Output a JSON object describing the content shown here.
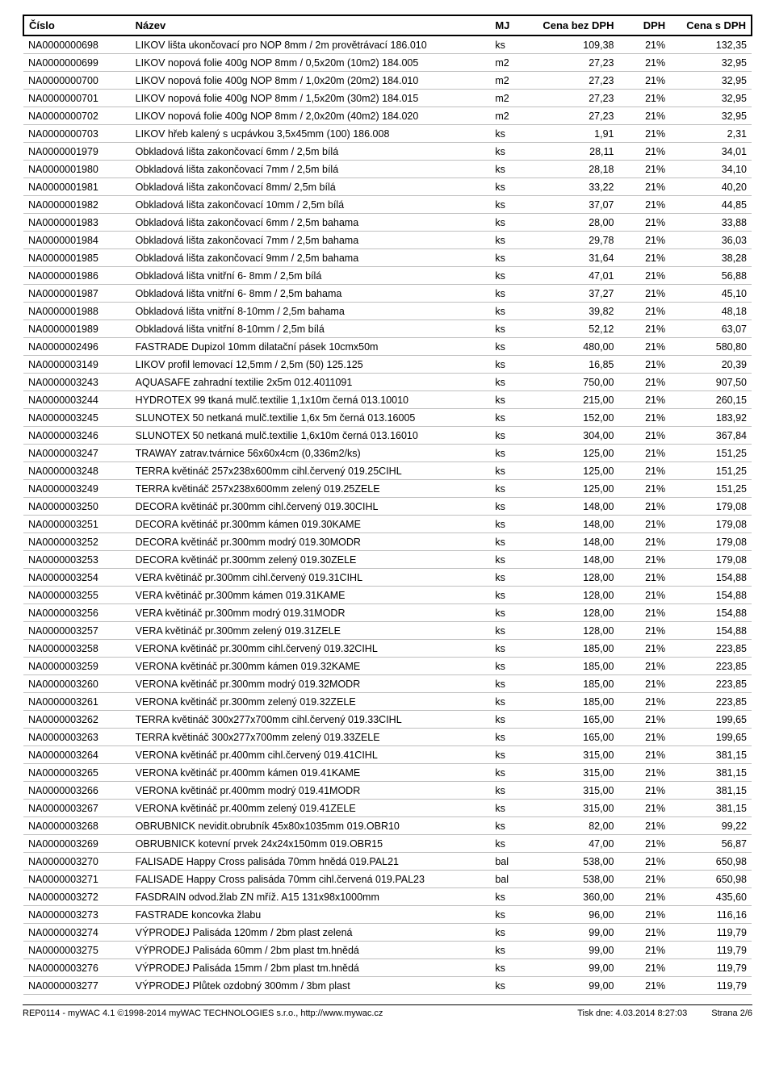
{
  "headers": {
    "cislo": "Číslo",
    "nazev": "Název",
    "mj": "MJ",
    "bez": "Cena bez DPH",
    "dph": "DPH",
    "sdph": "Cena s DPH"
  },
  "rows": [
    {
      "cislo": "NA0000000698",
      "nazev": "LIKOV lišta ukončovací pro NOP 8mm / 2m provětrávací 186.010",
      "mj": "ks",
      "bez": "109,38",
      "dph": "21%",
      "sdph": "132,35"
    },
    {
      "cislo": "NA0000000699",
      "nazev": "LIKOV nopová folie 400g NOP 8mm / 0,5x20m (10m2) 184.005",
      "mj": "m2",
      "bez": "27,23",
      "dph": "21%",
      "sdph": "32,95"
    },
    {
      "cislo": "NA0000000700",
      "nazev": "LIKOV nopová folie 400g NOP 8mm / 1,0x20m (20m2) 184.010",
      "mj": "m2",
      "bez": "27,23",
      "dph": "21%",
      "sdph": "32,95"
    },
    {
      "cislo": "NA0000000701",
      "nazev": "LIKOV nopová folie 400g NOP 8mm / 1,5x20m (30m2) 184.015",
      "mj": "m2",
      "bez": "27,23",
      "dph": "21%",
      "sdph": "32,95"
    },
    {
      "cislo": "NA0000000702",
      "nazev": "LIKOV nopová folie 400g NOP 8mm / 2,0x20m (40m2) 184.020",
      "mj": "m2",
      "bez": "27,23",
      "dph": "21%",
      "sdph": "32,95"
    },
    {
      "cislo": "NA0000000703",
      "nazev": "LIKOV hřeb kalený s ucpávkou 3,5x45mm (100) 186.008",
      "mj": "ks",
      "bez": "1,91",
      "dph": "21%",
      "sdph": "2,31"
    },
    {
      "cislo": "NA0000001979",
      "nazev": "Obkladová lišta zakončovací 6mm / 2,5m bílá",
      "mj": "ks",
      "bez": "28,11",
      "dph": "21%",
      "sdph": "34,01"
    },
    {
      "cislo": "NA0000001980",
      "nazev": "Obkladová lišta zakončovací 7mm / 2,5m bílá",
      "mj": "ks",
      "bez": "28,18",
      "dph": "21%",
      "sdph": "34,10"
    },
    {
      "cislo": "NA0000001981",
      "nazev": "Obkladová lišta zakončovací 8mm/ 2,5m bílá",
      "mj": "ks",
      "bez": "33,22",
      "dph": "21%",
      "sdph": "40,20"
    },
    {
      "cislo": "NA0000001982",
      "nazev": "Obkladová lišta zakončovací 10mm / 2,5m bílá",
      "mj": "ks",
      "bez": "37,07",
      "dph": "21%",
      "sdph": "44,85"
    },
    {
      "cislo": "NA0000001983",
      "nazev": "Obkladová lišta zakončovací 6mm / 2,5m bahama",
      "mj": "ks",
      "bez": "28,00",
      "dph": "21%",
      "sdph": "33,88"
    },
    {
      "cislo": "NA0000001984",
      "nazev": "Obkladová lišta zakončovací 7mm / 2,5m bahama",
      "mj": "ks",
      "bez": "29,78",
      "dph": "21%",
      "sdph": "36,03"
    },
    {
      "cislo": "NA0000001985",
      "nazev": "Obkladová lišta zakončovací 9mm / 2,5m bahama",
      "mj": "ks",
      "bez": "31,64",
      "dph": "21%",
      "sdph": "38,28"
    },
    {
      "cislo": "NA0000001986",
      "nazev": "Obkladová lišta vnitřní 6- 8mm / 2,5m bílá",
      "mj": "ks",
      "bez": "47,01",
      "dph": "21%",
      "sdph": "56,88"
    },
    {
      "cislo": "NA0000001987",
      "nazev": "Obkladová lišta vnitřní 6- 8mm / 2,5m bahama",
      "mj": "ks",
      "bez": "37,27",
      "dph": "21%",
      "sdph": "45,10"
    },
    {
      "cislo": "NA0000001988",
      "nazev": "Obkladová lišta vnitřní 8-10mm / 2,5m bahama",
      "mj": "ks",
      "bez": "39,82",
      "dph": "21%",
      "sdph": "48,18"
    },
    {
      "cislo": "NA0000001989",
      "nazev": "Obkladová lišta vnitřní 8-10mm / 2,5m bílá",
      "mj": "ks",
      "bez": "52,12",
      "dph": "21%",
      "sdph": "63,07"
    },
    {
      "cislo": "NA0000002496",
      "nazev": "FASTRADE Dupizol 10mm dilatační pásek 10cmx50m",
      "mj": "ks",
      "bez": "480,00",
      "dph": "21%",
      "sdph": "580,80"
    },
    {
      "cislo": "NA0000003149",
      "nazev": "LIKOV profil lemovací 12,5mm / 2,5m (50) 125.125",
      "mj": "ks",
      "bez": "16,85",
      "dph": "21%",
      "sdph": "20,39"
    },
    {
      "cislo": "NA0000003243",
      "nazev": "AQUASAFE zahradní textilie 2x5m 012.4011091",
      "mj": "ks",
      "bez": "750,00",
      "dph": "21%",
      "sdph": "907,50"
    },
    {
      "cislo": "NA0000003244",
      "nazev": "HYDROTEX 99 tkaná mulč.textilie 1,1x10m černá 013.10010",
      "mj": "ks",
      "bez": "215,00",
      "dph": "21%",
      "sdph": "260,15"
    },
    {
      "cislo": "NA0000003245",
      "nazev": "SLUNOTEX 50 netkaná mulč.textilie 1,6x 5m černá 013.16005",
      "mj": "ks",
      "bez": "152,00",
      "dph": "21%",
      "sdph": "183,92"
    },
    {
      "cislo": "NA0000003246",
      "nazev": "SLUNOTEX 50 netkaná mulč.textilie 1,6x10m černá 013.16010",
      "mj": "ks",
      "bez": "304,00",
      "dph": "21%",
      "sdph": "367,84"
    },
    {
      "cislo": "NA0000003247",
      "nazev": "TRAWAY zatrav.tvárnice 56x60x4cm (0,336m2/ks)",
      "mj": "ks",
      "bez": "125,00",
      "dph": "21%",
      "sdph": "151,25"
    },
    {
      "cislo": "NA0000003248",
      "nazev": "TERRA květináč 257x238x600mm cihl.červený 019.25CIHL",
      "mj": "ks",
      "bez": "125,00",
      "dph": "21%",
      "sdph": "151,25"
    },
    {
      "cislo": "NA0000003249",
      "nazev": "TERRA květináč 257x238x600mm zelený 019.25ZELE",
      "mj": "ks",
      "bez": "125,00",
      "dph": "21%",
      "sdph": "151,25"
    },
    {
      "cislo": "NA0000003250",
      "nazev": "DECORA květináč pr.300mm cihl.červený 019.30CIHL",
      "mj": "ks",
      "bez": "148,00",
      "dph": "21%",
      "sdph": "179,08"
    },
    {
      "cislo": "NA0000003251",
      "nazev": "DECORA květináč pr.300mm kámen 019.30KAME",
      "mj": "ks",
      "bez": "148,00",
      "dph": "21%",
      "sdph": "179,08"
    },
    {
      "cislo": "NA0000003252",
      "nazev": "DECORA květináč pr.300mm modrý 019.30MODR",
      "mj": "ks",
      "bez": "148,00",
      "dph": "21%",
      "sdph": "179,08"
    },
    {
      "cislo": "NA0000003253",
      "nazev": "DECORA květináč pr.300mm zelený 019.30ZELE",
      "mj": "ks",
      "bez": "148,00",
      "dph": "21%",
      "sdph": "179,08"
    },
    {
      "cislo": "NA0000003254",
      "nazev": "VERA květináč pr.300mm cihl.červený 019.31CIHL",
      "mj": "ks",
      "bez": "128,00",
      "dph": "21%",
      "sdph": "154,88"
    },
    {
      "cislo": "NA0000003255",
      "nazev": "VERA květináč pr.300mm kámen 019.31KAME",
      "mj": "ks",
      "bez": "128,00",
      "dph": "21%",
      "sdph": "154,88"
    },
    {
      "cislo": "NA0000003256",
      "nazev": "VERA květináč pr.300mm modrý 019.31MODR",
      "mj": "ks",
      "bez": "128,00",
      "dph": "21%",
      "sdph": "154,88"
    },
    {
      "cislo": "NA0000003257",
      "nazev": "VERA květináč pr.300mm zelený 019.31ZELE",
      "mj": "ks",
      "bez": "128,00",
      "dph": "21%",
      "sdph": "154,88"
    },
    {
      "cislo": "NA0000003258",
      "nazev": "VERONA květináč pr.300mm cihl.červený 019.32CIHL",
      "mj": "ks",
      "bez": "185,00",
      "dph": "21%",
      "sdph": "223,85"
    },
    {
      "cislo": "NA0000003259",
      "nazev": "VERONA květináč pr.300mm kámen 019.32KAME",
      "mj": "ks",
      "bez": "185,00",
      "dph": "21%",
      "sdph": "223,85"
    },
    {
      "cislo": "NA0000003260",
      "nazev": "VERONA květináč pr.300mm modrý 019.32MODR",
      "mj": "ks",
      "bez": "185,00",
      "dph": "21%",
      "sdph": "223,85"
    },
    {
      "cislo": "NA0000003261",
      "nazev": "VERONA květináč pr.300mm zelený 019.32ZELE",
      "mj": "ks",
      "bez": "185,00",
      "dph": "21%",
      "sdph": "223,85"
    },
    {
      "cislo": "NA0000003262",
      "nazev": "TERRA květináč 300x277x700mm cihl.červený 019.33CIHL",
      "mj": "ks",
      "bez": "165,00",
      "dph": "21%",
      "sdph": "199,65"
    },
    {
      "cislo": "NA0000003263",
      "nazev": "TERRA květináč 300x277x700mm zelený 019.33ZELE",
      "mj": "ks",
      "bez": "165,00",
      "dph": "21%",
      "sdph": "199,65"
    },
    {
      "cislo": "NA0000003264",
      "nazev": "VERONA květináč pr.400mm cihl.červený 019.41CIHL",
      "mj": "ks",
      "bez": "315,00",
      "dph": "21%",
      "sdph": "381,15"
    },
    {
      "cislo": "NA0000003265",
      "nazev": "VERONA květináč pr.400mm kámen 019.41KAME",
      "mj": "ks",
      "bez": "315,00",
      "dph": "21%",
      "sdph": "381,15"
    },
    {
      "cislo": "NA0000003266",
      "nazev": "VERONA květináč pr.400mm modrý 019.41MODR",
      "mj": "ks",
      "bez": "315,00",
      "dph": "21%",
      "sdph": "381,15"
    },
    {
      "cislo": "NA0000003267",
      "nazev": "VERONA květináč pr.400mm zelený 019.41ZELE",
      "mj": "ks",
      "bez": "315,00",
      "dph": "21%",
      "sdph": "381,15"
    },
    {
      "cislo": "NA0000003268",
      "nazev": "OBRUBNICK nevidit.obrubník 45x80x1035mm 019.OBR10",
      "mj": "ks",
      "bez": "82,00",
      "dph": "21%",
      "sdph": "99,22"
    },
    {
      "cislo": "NA0000003269",
      "nazev": "OBRUBNICK kotevní prvek 24x24x150mm 019.OBR15",
      "mj": "ks",
      "bez": "47,00",
      "dph": "21%",
      "sdph": "56,87"
    },
    {
      "cislo": "NA0000003270",
      "nazev": "FALISADE Happy Cross palisáda 70mm hnědá 019.PAL21",
      "mj": "bal",
      "bez": "538,00",
      "dph": "21%",
      "sdph": "650,98"
    },
    {
      "cislo": "NA0000003271",
      "nazev": "FALISADE Happy Cross palisáda 70mm cihl.červená 019.PAL23",
      "mj": "bal",
      "bez": "538,00",
      "dph": "21%",
      "sdph": "650,98"
    },
    {
      "cislo": "NA0000003272",
      "nazev": "FASDRAIN odvod.žlab ZN mříž. A15 131x98x1000mm",
      "mj": "ks",
      "bez": "360,00",
      "dph": "21%",
      "sdph": "435,60"
    },
    {
      "cislo": "NA0000003273",
      "nazev": "FASTRADE koncovka žlabu",
      "mj": "ks",
      "bez": "96,00",
      "dph": "21%",
      "sdph": "116,16"
    },
    {
      "cislo": "NA0000003274",
      "nazev": "VÝPRODEJ Palisáda 120mm / 2bm plast zelená",
      "mj": "ks",
      "bez": "99,00",
      "dph": "21%",
      "sdph": "119,79"
    },
    {
      "cislo": "NA0000003275",
      "nazev": "VÝPRODEJ Palisáda 60mm / 2bm plast tm.hnědá",
      "mj": "ks",
      "bez": "99,00",
      "dph": "21%",
      "sdph": "119,79"
    },
    {
      "cislo": "NA0000003276",
      "nazev": "VÝPRODEJ Palisáda 15mm / 2bm plast tm.hnědá",
      "mj": "ks",
      "bez": "99,00",
      "dph": "21%",
      "sdph": "119,79"
    },
    {
      "cislo": "NA0000003277",
      "nazev": "VÝPRODEJ Plůtek ozdobný 300mm / 3bm plast",
      "mj": "ks",
      "bez": "99,00",
      "dph": "21%",
      "sdph": "119,79"
    }
  ],
  "footer": {
    "left": "REP0114 - myWAC 4.1 ©1998-2014 myWAC TECHNOLOGIES s.r.o., http://www.mywac.cz",
    "mid": "Tisk dne: 4.03.2014 8:27:03",
    "right": "Strana 2/6"
  }
}
